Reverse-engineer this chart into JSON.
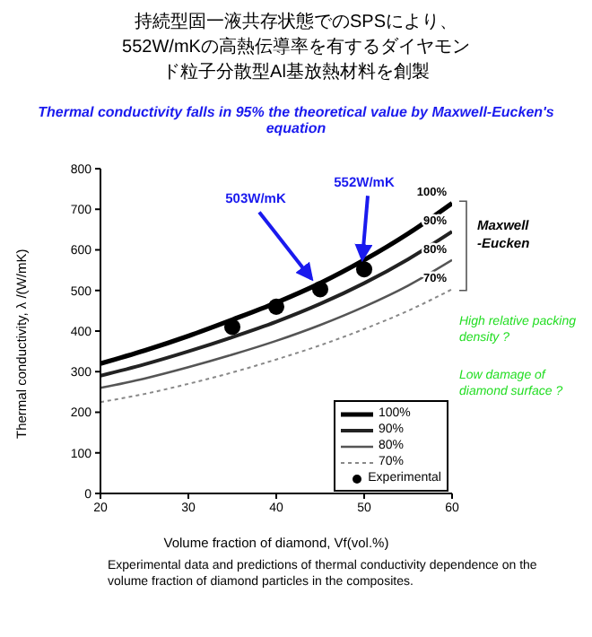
{
  "chart_data": {
    "type": "line",
    "title": "持続型固一液共存状態でのSPSにより、552W/mKの高熱伝導率を有するダイヤモンド粒子分散型Al基放熱材料を創製",
    "subtitle": "Thermal conductivity falls in 95% the theoretical value by Maxwell-Eucken's equation",
    "xlabel": "Volume fraction of diamond, Vf(vol.%)",
    "ylabel": "Thermal conductivity, λ /(W/mK)",
    "x": [
      20,
      25,
      30,
      35,
      40,
      45,
      50,
      55,
      60
    ],
    "series": [
      {
        "name": "100%",
        "color": "#000000",
        "line_style": "solid",
        "values": [
          320,
          352,
          388,
          428,
          470,
          518,
          575,
          640,
          715
        ]
      },
      {
        "name": "90%",
        "color": "#222222",
        "line_style": "solid",
        "values": [
          290,
          318,
          350,
          385,
          423,
          467,
          518,
          577,
          645
        ]
      },
      {
        "name": "80%",
        "color": "#555555",
        "line_style": "solid",
        "values": [
          260,
          283,
          311,
          342,
          376,
          415,
          460,
          512,
          575
        ]
      },
      {
        "name": "70%",
        "color": "#888888",
        "line_style": "dotted",
        "values": [
          225,
          245,
          270,
          298,
          330,
          365,
          405,
          450,
          503
        ]
      },
      {
        "name": "Experimental",
        "type": "scatter",
        "color": "#000000",
        "marker": "circle",
        "x": [
          35,
          40,
          45,
          50
        ],
        "values": [
          410,
          460,
          503,
          552
        ]
      }
    ],
    "xlim": [
      20,
      60
    ],
    "xticks": [
      20,
      30,
      40,
      50,
      60
    ],
    "ylim": [
      0,
      800
    ],
    "yticks": [
      0,
      100,
      200,
      300,
      400,
      500,
      600,
      700,
      800
    ],
    "legend": "bottom right",
    "marker": "none",
    "annotations": [
      {
        "text": "503W/mK",
        "x": 45,
        "y": 503
      },
      {
        "text": "552W/mK",
        "x": 50,
        "y": 552
      },
      "Maxwell -Eucken",
      "High relative packing density ?",
      "Low damage of diamond surface ?",
      "Experimental data and predictions of thermal conductivity dependence on the volume fraction of diamond particles in the composites."
    ]
  }
}
